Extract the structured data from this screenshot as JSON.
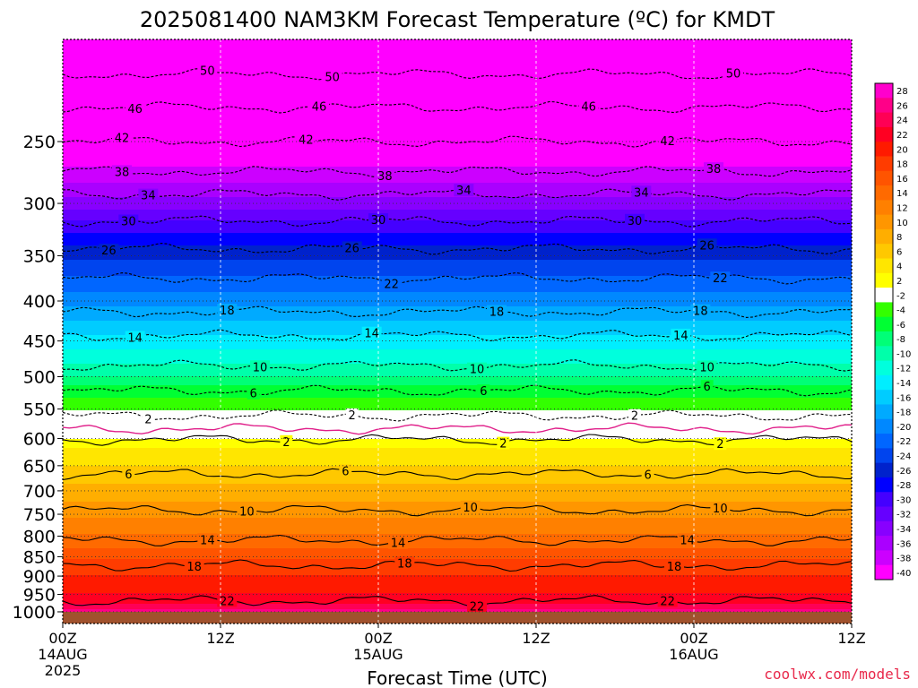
{
  "chart_data": {
    "type": "heatmap",
    "title": "2025081400 NAM3KM Forecast Temperature (ºC) for KMDT",
    "xlabel": "Forecast Time (UTC)",
    "ylabel": "",
    "x_ticks": [
      {
        "label": "00Z",
        "sub": "14AUG",
        "sub2": "2025",
        "hours": 0
      },
      {
        "label": "12Z",
        "sub": "",
        "sub2": "",
        "hours": 12
      },
      {
        "label": "00Z",
        "sub": "15AUG",
        "sub2": "",
        "hours": 24
      },
      {
        "label": "12Z",
        "sub": "",
        "sub2": "",
        "hours": 36
      },
      {
        "label": "00Z",
        "sub": "16AUG",
        "sub2": "",
        "hours": 48
      },
      {
        "label": "12Z",
        "sub": "",
        "sub2": "",
        "hours": 60
      }
    ],
    "xlim": [
      0,
      60
    ],
    "ylim_hPa": [
      1035,
      185
    ],
    "y_ticks": [
      "250",
      "300",
      "350",
      "400",
      "450",
      "500",
      "550",
      "600",
      "650",
      "700",
      "750",
      "800",
      "850",
      "900",
      "950",
      "1000"
    ],
    "y_tick_values": [
      250,
      300,
      350,
      400,
      450,
      500,
      550,
      600,
      650,
      700,
      750,
      800,
      850,
      900,
      950,
      1000
    ],
    "y_scale": "log-pressure",
    "colorbar": {
      "labels": [
        "28",
        "26",
        "24",
        "22",
        "20",
        "18",
        "16",
        "14",
        "12",
        "10",
        "8",
        "6",
        "4",
        "2",
        "-2",
        "-4",
        "-6",
        "-8",
        "-10",
        "-12",
        "-14",
        "-16",
        "-18",
        "-20",
        "-22",
        "-24",
        "-26",
        "-28",
        "-30",
        "-32",
        "-34",
        "-36",
        "-38",
        "-40"
      ],
      "colors": [
        "#ff00cc",
        "#ff0088",
        "#ff0055",
        "#ff0022",
        "#ff1a00",
        "#ff3c00",
        "#ff5400",
        "#ff6a00",
        "#ff8000",
        "#ff9600",
        "#ffae00",
        "#ffc800",
        "#ffe600",
        "#ffff00",
        "#ffffff",
        "#33ff00",
        "#00ff33",
        "#00ff77",
        "#00ffaa",
        "#00ffdd",
        "#00eeff",
        "#00ccff",
        "#00aaff",
        "#0088ff",
        "#0066ff",
        "#0044ee",
        "#0022cc",
        "#0000ff",
        "#4400ff",
        "#6600ff",
        "#8800ff",
        "#aa00ff",
        "#cc00ff",
        "#ff00ff"
      ]
    },
    "temperature_profile": [
      {
        "p": 185,
        "t": -54
      },
      {
        "p": 200,
        "t": -50
      },
      {
        "p": 225,
        "t": -46
      },
      {
        "p": 250,
        "t": -42
      },
      {
        "p": 275,
        "t": -38
      },
      {
        "p": 300,
        "t": -34
      },
      {
        "p": 320,
        "t": -30
      },
      {
        "p": 345,
        "t": -26
      },
      {
        "p": 380,
        "t": -22
      },
      {
        "p": 415,
        "t": -18
      },
      {
        "p": 450,
        "t": -14
      },
      {
        "p": 490,
        "t": -10
      },
      {
        "p": 520,
        "t": -6
      },
      {
        "p": 560,
        "t": -2
      },
      {
        "p": 580,
        "t": 0
      },
      {
        "p": 600,
        "t": 2
      },
      {
        "p": 665,
        "t": 6
      },
      {
        "p": 740,
        "t": 10
      },
      {
        "p": 810,
        "t": 14
      },
      {
        "p": 870,
        "t": 18
      },
      {
        "p": 965,
        "t": 22
      },
      {
        "p": 1000,
        "t": 26
      }
    ],
    "contours": [
      {
        "value": -50,
        "label": "50",
        "style": "dashed",
        "p": 205,
        "labels_at_hours": [
          11,
          20.5,
          51
        ]
      },
      {
        "value": -46,
        "label": "46",
        "style": "dashed",
        "p": 226,
        "labels_at_hours": [
          5.5,
          19.5,
          40
        ]
      },
      {
        "value": -42,
        "label": "42",
        "style": "dashed",
        "p": 250,
        "labels_at_hours": [
          4.5,
          18.5,
          46
        ]
      },
      {
        "value": -38,
        "label": "38",
        "style": "dashed",
        "p": 273,
        "labels_at_hours": [
          4.5,
          24.5,
          49.5
        ]
      },
      {
        "value": -34,
        "label": "34",
        "style": "dashed",
        "p": 292,
        "labels_at_hours": [
          6.5,
          30.5,
          44
        ]
      },
      {
        "value": -30,
        "label": "30",
        "style": "dashed",
        "p": 316,
        "labels_at_hours": [
          5,
          24,
          43.5
        ]
      },
      {
        "value": -26,
        "label": "26",
        "style": "dashed",
        "p": 343,
        "labels_at_hours": [
          3.5,
          22,
          49
        ]
      },
      {
        "value": -22,
        "label": "22",
        "style": "dashed",
        "p": 374,
        "labels_at_hours": [
          25,
          50
        ]
      },
      {
        "value": -18,
        "label": "18",
        "style": "dashed",
        "p": 413,
        "labels_at_hours": [
          12.5,
          33,
          48.5
        ]
      },
      {
        "value": -14,
        "label": "14",
        "style": "dashed",
        "p": 443,
        "labels_at_hours": [
          5.5,
          23.5,
          47
        ]
      },
      {
        "value": -10,
        "label": "10",
        "style": "dashed",
        "p": 484,
        "labels_at_hours": [
          15,
          31.5,
          49
        ]
      },
      {
        "value": -6,
        "label": "6",
        "style": "dashed",
        "p": 521,
        "labels_at_hours": [
          14.5,
          32,
          49
        ]
      },
      {
        "value": -2,
        "label": "2",
        "style": "dashed",
        "p": 561,
        "labels_at_hours": [
          6.5,
          22,
          43.5
        ]
      },
      {
        "value": 0,
        "label": "",
        "style": "magenta",
        "p": 583,
        "labels_at_hours": []
      },
      {
        "value": 2,
        "label": "2",
        "style": "solid",
        "p": 602,
        "labels_at_hours": [
          17,
          33.5,
          50
        ]
      },
      {
        "value": 6,
        "label": "6",
        "style": "solid",
        "p": 666,
        "labels_at_hours": [
          5,
          21.5,
          44.5
        ]
      },
      {
        "value": 10,
        "label": "10",
        "style": "solid",
        "p": 741,
        "labels_at_hours": [
          14,
          31,
          50
        ]
      },
      {
        "value": 14,
        "label": "14",
        "style": "solid",
        "p": 810,
        "labels_at_hours": [
          11,
          25.5,
          47.5
        ]
      },
      {
        "value": 18,
        "label": "18",
        "style": "solid",
        "p": 872,
        "labels_at_hours": [
          10,
          26,
          46.5
        ]
      },
      {
        "value": 22,
        "label": "22",
        "style": "solid",
        "p": 968,
        "labels_at_hours": [
          12.5,
          31.5,
          46
        ]
      }
    ],
    "ground_p": 1000
  },
  "credit": "coolwx.com/models"
}
